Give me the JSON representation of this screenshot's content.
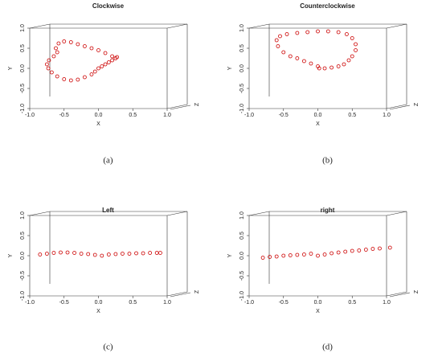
{
  "chart_data": [
    {
      "type": "scatter",
      "title": "Clockwise",
      "caption": "(a)",
      "xlabel": "X",
      "ylabel": "Y",
      "zlabel": "Z",
      "color": "#cc0000",
      "xlim": [
        -1,
        1
      ],
      "ylim": [
        -1,
        1
      ],
      "xticks": [
        {
          "value": -1,
          "label": "-1.0"
        },
        -0.5,
        {
          "value": 0,
          "label": "0.0"
        },
        0.5,
        {
          "value": 1,
          "label": "1.0"
        }
      ],
      "yticks": [
        {
          "value": -1,
          "label": "-1.0"
        },
        -0.5,
        {
          "value": 0,
          "label": "0.0"
        },
        0.5,
        {
          "value": 1,
          "label": "1.0"
        }
      ],
      "x": [
        0.2,
        0.1,
        0.0,
        -0.1,
        -0.2,
        -0.3,
        -0.4,
        -0.5,
        -0.58,
        -0.62,
        -0.6,
        -0.65,
        -0.72,
        -0.75,
        -0.73,
        -0.68,
        -0.6,
        -0.5,
        -0.4,
        -0.3,
        -0.2,
        -0.1,
        -0.05,
        0.0,
        0.05,
        0.1,
        0.15,
        0.2,
        0.25,
        0.27
      ],
      "y": [
        0.3,
        0.38,
        0.45,
        0.5,
        0.55,
        0.6,
        0.65,
        0.67,
        0.62,
        0.5,
        0.4,
        0.3,
        0.2,
        0.1,
        0.0,
        -0.1,
        -0.2,
        -0.27,
        -0.3,
        -0.28,
        -0.22,
        -0.15,
        -0.08,
        0.0,
        0.05,
        0.1,
        0.15,
        0.2,
        0.25,
        0.28
      ]
    },
    {
      "type": "scatter",
      "title": "Counterclockwise",
      "caption": "(b)",
      "xlabel": "X",
      "ylabel": "Y",
      "zlabel": "Z",
      "color": "#cc0000",
      "xlim": [
        -1,
        1
      ],
      "ylim": [
        -1,
        1
      ],
      "xticks": [
        {
          "value": -1,
          "label": "-1.0"
        },
        -0.5,
        {
          "value": 0,
          "label": "0.0"
        },
        0.5,
        {
          "value": 1,
          "label": "1.0"
        }
      ],
      "yticks": [
        {
          "value": -1,
          "label": "-1.0"
        },
        -0.5,
        {
          "value": 0,
          "label": "0.0"
        },
        0.5,
        {
          "value": 1,
          "label": "1.0"
        }
      ],
      "x": [
        0.0,
        -0.1,
        -0.2,
        -0.3,
        -0.4,
        -0.5,
        -0.58,
        -0.6,
        -0.55,
        -0.45,
        -0.3,
        -0.15,
        0.0,
        0.15,
        0.3,
        0.42,
        0.5,
        0.55,
        0.55,
        0.5,
        0.45,
        0.38,
        0.3,
        0.2,
        0.1,
        0.02
      ],
      "y": [
        0.05,
        0.12,
        0.18,
        0.25,
        0.3,
        0.4,
        0.55,
        0.7,
        0.8,
        0.85,
        0.88,
        0.9,
        0.92,
        0.92,
        0.9,
        0.85,
        0.75,
        0.6,
        0.45,
        0.3,
        0.2,
        0.1,
        0.05,
        0.02,
        0.0,
        0.0
      ]
    },
    {
      "type": "scatter",
      "title": "Left",
      "caption": "(c)",
      "xlabel": "X",
      "ylabel": "Y",
      "zlabel": "Z",
      "color": "#cc0000",
      "xlim": [
        -1,
        1
      ],
      "ylim": [
        -1,
        1
      ],
      "xticks": [
        {
          "value": -1,
          "label": "-1.0"
        },
        -0.5,
        {
          "value": 0,
          "label": "0.0"
        },
        0.5,
        {
          "value": 1,
          "label": "1.0"
        }
      ],
      "yticks": [
        {
          "value": -1,
          "label": "-1.0"
        },
        -0.5,
        {
          "value": 0,
          "label": "0.0"
        },
        0.5,
        {
          "value": 1,
          "label": "1.0"
        }
      ],
      "x": [
        -0.85,
        -0.75,
        -0.65,
        -0.55,
        -0.45,
        -0.35,
        -0.25,
        -0.15,
        -0.05,
        0.05,
        0.15,
        0.25,
        0.35,
        0.45,
        0.55,
        0.65,
        0.75,
        0.85,
        0.9
      ],
      "y": [
        0.03,
        0.05,
        0.07,
        0.08,
        0.08,
        0.07,
        0.05,
        0.04,
        0.02,
        0.0,
        0.03,
        0.04,
        0.05,
        0.05,
        0.06,
        0.06,
        0.07,
        0.07,
        0.07
      ]
    },
    {
      "type": "scatter",
      "title": "right",
      "caption": "(d)",
      "xlabel": "X",
      "ylabel": "Y",
      "zlabel": "Z",
      "color": "#cc0000",
      "xlim": [
        -1,
        1
      ],
      "ylim": [
        -1,
        1
      ],
      "xticks": [
        {
          "value": -1,
          "label": "-1.0"
        },
        -0.5,
        {
          "value": 0,
          "label": "0.0"
        },
        0.5,
        {
          "value": 1,
          "label": "1.0"
        }
      ],
      "yticks": [
        {
          "value": -1,
          "label": "-1.0"
        },
        -0.5,
        {
          "value": 0,
          "label": "0.0"
        },
        0.5,
        {
          "value": 1,
          "label": "1.0"
        }
      ],
      "x": [
        -0.8,
        -0.7,
        -0.6,
        -0.5,
        -0.4,
        -0.3,
        -0.2,
        -0.1,
        0.0,
        0.1,
        0.2,
        0.3,
        0.4,
        0.5,
        0.6,
        0.7,
        0.8,
        0.9,
        1.05
      ],
      "y": [
        -0.05,
        -0.03,
        -0.02,
        0.0,
        0.01,
        0.02,
        0.03,
        0.05,
        0.0,
        0.03,
        0.06,
        0.08,
        0.1,
        0.12,
        0.13,
        0.15,
        0.17,
        0.18,
        0.2
      ]
    }
  ]
}
